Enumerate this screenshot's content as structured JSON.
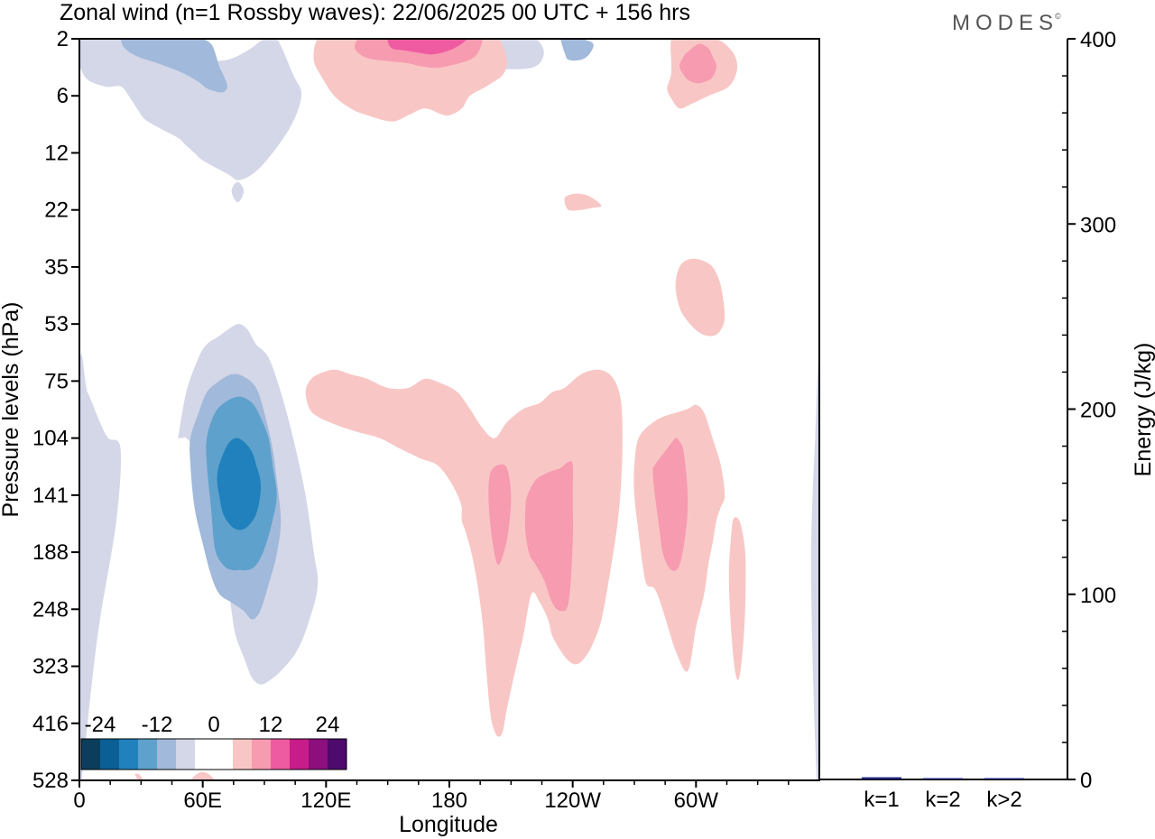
{
  "title": "Zonal wind (n=1 Rossby waves):  22/06/2025  00 UTC  + 156 hrs",
  "brand": "MODES",
  "brand_mark": "©",
  "chart_data": [
    {
      "type": "heatmap",
      "name": "contour",
      "xlabel": "Longitude",
      "ylabel": "Pressure levels (hPa)",
      "x_ticks": [
        "0",
        "60E",
        "120E",
        "180",
        "120W",
        "60W"
      ],
      "y_ticks": [
        "2",
        "6",
        "12",
        "22",
        "35",
        "53",
        "75",
        "104",
        "141",
        "188",
        "248",
        "323",
        "416",
        "528"
      ],
      "colorbar": {
        "labels": [
          "-24",
          "-12",
          "0",
          "12",
          "24"
        ],
        "colors": [
          "#0b3e5c",
          "#0a5f95",
          "#2081bd",
          "#5ea1cc",
          "#a1b9da",
          "#d4d7e8",
          "#ffffff",
          "#ffffff",
          "#f8c7c5",
          "#f79bb1",
          "#ef5ba0",
          "#c81c8b",
          "#8c0f7d",
          "#4e0a6c"
        ]
      },
      "regions": [
        {
          "level": 1,
          "sign": -1,
          "color": "#d4d7e8",
          "x": [
            0,
            2,
            12,
            20,
            24,
            28,
            32,
            40,
            48,
            52,
            56,
            60,
            72,
            78,
            88,
            102,
            108,
            104,
            96,
            90,
            82,
            72,
            60,
            50,
            45,
            40,
            34,
            30
          ],
          "y": [
            2,
            4,
            5,
            5,
            6,
            7,
            8,
            9,
            10,
            11,
            12,
            13,
            15,
            16,
            14,
            9,
            6,
            4,
            2,
            2,
            2.5,
            3,
            3,
            2.5,
            2.2,
            2.5,
            2.2,
            2
          ]
        },
        {
          "level": 1,
          "sign": -1,
          "color": "#d4d7e8",
          "x": [
            76,
            78,
            80,
            78,
            76,
            74
          ],
          "y": [
            16.5,
            16.5,
            18,
            20,
            20,
            18
          ]
        },
        {
          "level": 1,
          "sign": -1,
          "color": "#d4d7e8",
          "x": [
            0,
            4,
            10,
            14,
            20,
            18,
            10,
            6,
            4,
            2,
            0
          ],
          "y": [
            75,
            80,
            95,
            104,
            110,
            160,
            260,
            350,
            416,
            480,
            528
          ]
        },
        {
          "level": 1,
          "sign": -1,
          "color": "#d4d7e8",
          "x": [
            48,
            52,
            58,
            62,
            68,
            74,
            78,
            82,
            86,
            92,
            98,
            104,
            110,
            114,
            116,
            112,
            106,
            98,
            92,
            88,
            84,
            80,
            76,
            74,
            72,
            68,
            64,
            62,
            60,
            56,
            52,
            50,
            48
          ],
          "y": [
            104,
            80,
            65,
            60,
            57,
            54,
            53,
            55,
            60,
            65,
            80,
            104,
            141,
            188,
            220,
            260,
            300,
            330,
            345,
            350,
            340,
            310,
            280,
            250,
            220,
            190,
            160,
            140,
            125,
            110,
            104,
            104,
            104
          ]
        },
        {
          "level": 1,
          "sign": -1,
          "color": "#d4d7e8",
          "x": [
            196,
            204,
            214,
            222,
            226,
            222,
            210,
            198,
            194,
            196
          ],
          "y": [
            2,
            2,
            2,
            2,
            2.6,
            3.4,
            3.6,
            3.4,
            3,
            2
          ]
        },
        {
          "level": 1,
          "sign": -1,
          "color": "#d4d7e8",
          "x": [
            360,
            358,
            356,
            358,
            360
          ],
          "y": [
            75,
            104,
            200,
            450,
            528
          ]
        },
        {
          "level": 2,
          "sign": -1,
          "color": "#a1b9da",
          "x": [
            20,
            30,
            40,
            50,
            56,
            60,
            64,
            66,
            68,
            70,
            72,
            70,
            66,
            62,
            58,
            52,
            46,
            38,
            28,
            22,
            20
          ],
          "y": [
            2,
            2,
            2,
            2,
            2,
            2,
            2.2,
            2.6,
            3.4,
            4,
            5,
            5.6,
            5.5,
            5.2,
            4.6,
            4,
            3.6,
            3.2,
            2.8,
            2.4,
            2
          ]
        },
        {
          "level": 2,
          "sign": -1,
          "color": "#a1b9da",
          "x": [
            54,
            58,
            62,
            68,
            74,
            80,
            86,
            90,
            94,
            96,
            98,
            96,
            92,
            88,
            84,
            80,
            74,
            68,
            64,
            60,
            56,
            54
          ],
          "y": [
            104,
            90,
            80,
            75,
            72,
            73,
            78,
            90,
            110,
            130,
            160,
            190,
            220,
            250,
            260,
            250,
            240,
            230,
            210,
            180,
            150,
            120
          ]
        },
        {
          "level": 2,
          "sign": -1,
          "color": "#a1b9da",
          "x": [
            234,
            238,
            244,
            250,
            248,
            244,
            238,
            236,
            234
          ],
          "y": [
            2,
            2,
            2,
            2.2,
            2.7,
            3,
            3,
            2.6,
            2
          ]
        },
        {
          "level": 3,
          "sign": -1,
          "color": "#5ea1cc",
          "x": [
            62,
            66,
            72,
            78,
            84,
            88,
            92,
            94,
            96,
            94,
            90,
            86,
            82,
            78,
            74,
            70,
            66,
            64,
            62
          ],
          "y": [
            104,
            90,
            84,
            82,
            85,
            92,
            104,
            120,
            141,
            160,
            185,
            200,
            205,
            205,
            205,
            200,
            185,
            150,
            120
          ]
        },
        {
          "level": 4,
          "sign": -1,
          "color": "#2081bd",
          "x": [
            68,
            72,
            76,
            80,
            84,
            86,
            88,
            88,
            86,
            82,
            78,
            74,
            70,
            68,
            67
          ],
          "y": [
            120,
            108,
            104,
            106,
            112,
            120,
            130,
            141,
            155,
            165,
            168,
            165,
            155,
            141,
            130
          ]
        },
        {
          "level": 1,
          "sign": 1,
          "color": "#f8c7c5",
          "x": [
            116,
            124,
            136,
            144,
            156,
            168,
            184,
            196,
            204,
            208,
            206,
            198,
            190,
            186,
            180,
            176,
            168,
            160,
            152,
            140,
            132,
            124,
            118,
            114
          ],
          "y": [
            2,
            2,
            2,
            2,
            2,
            2,
            2,
            2,
            2,
            3,
            4,
            5,
            6,
            7,
            7.6,
            7.5,
            7,
            7.6,
            8.2,
            7.6,
            7,
            6,
            4.2,
            3
          ]
        },
        {
          "level": 1,
          "sign": 1,
          "color": "#f8c7c5",
          "x": [
            288,
            294,
            300,
            310,
            318,
            320,
            316,
            306,
            298,
            292,
            288,
            286,
            288
          ],
          "y": [
            2,
            2,
            2,
            2,
            2.6,
            3.6,
            5,
            6,
            6.6,
            7,
            6.2,
            5.2,
            3.8
          ]
        },
        {
          "level": 1,
          "sign": 1,
          "color": "#f8c7c5",
          "x": [
            237,
            242,
            248,
            254,
            250,
            244,
            238,
            236
          ],
          "y": [
            19,
            18.5,
            19,
            21,
            21.5,
            22,
            22,
            20
          ]
        },
        {
          "level": 1,
          "sign": 1,
          "color": "#f8c7c5",
          "x": [
            292,
            296,
            302,
            308,
            312,
            314,
            312,
            308,
            302,
            296,
            292,
            290
          ],
          "y": [
            35,
            33,
            33,
            35,
            40,
            50,
            55,
            57,
            56,
            52,
            47,
            40
          ]
        },
        {
          "level": 1,
          "sign": 1,
          "color": "#f8c7c5",
          "x": [
            112,
            116,
            124,
            132,
            140,
            150,
            160,
            168,
            176,
            184,
            190,
            196,
            202,
            208,
            216,
            224,
            230,
            236,
            244,
            252,
            258,
            262,
            264,
            264,
            262,
            258,
            254,
            250,
            246,
            242,
            238,
            234,
            230,
            228,
            224,
            220,
            216,
            212,
            208,
            206,
            204,
            202,
            200,
            198,
            196,
            192,
            188,
            186,
            186,
            184,
            180,
            174,
            166,
            156,
            146,
            134,
            124,
            116,
            112,
            110
          ],
          "y": [
            75,
            72,
            70,
            72,
            74,
            78,
            78,
            74,
            76,
            80,
            88,
            98,
            104,
            95,
            88,
            85,
            80,
            78,
            72,
            70,
            72,
            78,
            90,
            120,
            160,
            210,
            260,
            290,
            310,
            320,
            315,
            300,
            280,
            260,
            240,
            230,
            280,
            330,
            390,
            430,
            440,
            430,
            400,
            330,
            260,
            200,
            170,
            160,
            150,
            141,
            130,
            120,
            116,
            110,
            104,
            100,
            96,
            92,
            88,
            80
          ]
        },
        {
          "level": 1,
          "sign": 1,
          "color": "#f8c7c5",
          "x": [
            272,
            278,
            284,
            290,
            296,
            300,
            304,
            308,
            312,
            314,
            312,
            310,
            308,
            306,
            304,
            300,
            296,
            290,
            284,
            280,
            276,
            274,
            272,
            270,
            270
          ],
          "y": [
            104,
            96,
            92,
            90,
            88,
            86,
            90,
            104,
            120,
            141,
            150,
            160,
            180,
            200,
            230,
            270,
            330,
            300,
            250,
            225,
            220,
            200,
            170,
            141,
            120
          ]
        },
        {
          "level": 1,
          "sign": 1,
          "color": "#f8c7c5",
          "x": [
            318,
            320,
            322,
            324,
            324,
            323,
            321,
            319,
            317,
            316,
            317
          ],
          "y": [
            160,
            158,
            165,
            190,
            240,
            290,
            340,
            330,
            270,
            210,
            175
          ]
        },
        {
          "level": 2,
          "sign": 1,
          "color": "#f79bb1",
          "x": [
            136,
            144,
            152,
            160,
            168,
            176,
            184,
            192,
            196,
            194,
            190,
            182,
            174,
            166,
            160,
            152,
            144,
            138,
            134
          ],
          "y": [
            2,
            2,
            2,
            2,
            2,
            2,
            2,
            2,
            2,
            2.6,
            3,
            3.3,
            3.5,
            3.4,
            3.2,
            3.1,
            3,
            2.8,
            2.4
          ]
        },
        {
          "level": 2,
          "sign": 1,
          "color": "#f79bb1",
          "x": [
            294,
            298,
            302,
            306,
            308,
            310,
            308,
            304,
            300,
            296,
            294,
            292
          ],
          "y": [
            2.8,
            2.4,
            2.2,
            2.4,
            2.8,
            3.4,
            4.2,
            4.6,
            4.7,
            4.4,
            4,
            3.4
          ]
        },
        {
          "level": 2,
          "sign": 1,
          "color": "#f79bb1",
          "x": [
            200,
            204,
            208,
            210,
            209,
            207,
            204,
            202,
            200,
            199
          ],
          "y": [
            125,
            120,
            122,
            141,
            165,
            185,
            200,
            190,
            165,
            141
          ]
        },
        {
          "level": 2,
          "sign": 1,
          "color": "#f79bb1",
          "x": [
            218,
            222,
            228,
            234,
            238,
            240,
            240,
            240,
            238,
            234,
            230,
            226,
            222,
            219,
            217,
            217
          ],
          "y": [
            141,
            130,
            125,
            122,
            118,
            120,
            141,
            180,
            240,
            250,
            240,
            215,
            200,
            190,
            170,
            150
          ]
        },
        {
          "level": 2,
          "sign": 1,
          "color": "#f79bb1",
          "x": [
            280,
            286,
            290,
            292,
            294,
            296,
            295,
            292,
            288,
            284,
            282,
            280,
            279
          ],
          "y": [
            120,
            110,
            104,
            106,
            112,
            141,
            170,
            200,
            205,
            190,
            165,
            141,
            125
          ]
        },
        {
          "level": 3,
          "sign": 1,
          "color": "#ef5ba0",
          "x": [
            150,
            154,
            158,
            164,
            170,
            176,
            182,
            188,
            186,
            180,
            172,
            164,
            158,
            152
          ],
          "y": [
            2,
            2,
            2,
            2,
            2,
            2,
            2,
            2,
            2.2,
            2.5,
            2.7,
            2.6,
            2.5,
            2.4
          ]
        },
        {
          "level": 1,
          "sign": 1,
          "color": "#f8c7c5",
          "x": [
            27,
            29,
            31,
            29
          ],
          "y": [
            515,
            515,
            528,
            528
          ]
        },
        {
          "level": 1,
          "sign": 1,
          "color": "#f8c7c5",
          "x": [
            55,
            58,
            62,
            66,
            65
          ],
          "y": [
            528,
            512,
            512,
            528,
            528
          ]
        }
      ]
    },
    {
      "type": "bar",
      "name": "energy",
      "ylabel": "Energy (J/kg)",
      "ylim": [
        0,
        400
      ],
      "yticks": [
        "0",
        "100",
        "200",
        "300",
        "400"
      ],
      "categories": [
        "k=1",
        "k=2",
        "k>2"
      ],
      "values": [
        1.2,
        0.3,
        0.5
      ],
      "bar_color": "#1f237a"
    }
  ]
}
